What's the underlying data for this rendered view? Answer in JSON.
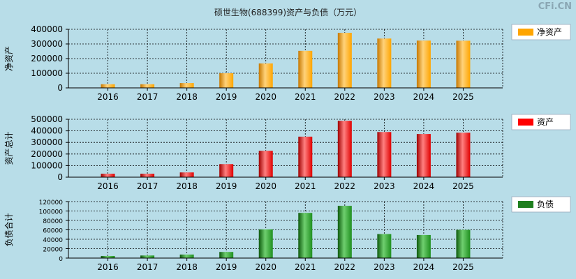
{
  "title": "硕世生物(688399)资产与负债（万元）",
  "watermark": "CFi.CN",
  "colors": {
    "background": "#b8dde8",
    "net_assets": "#ffa500",
    "assets": "#ff0000",
    "liabilities": "#1f7f1f"
  },
  "chart_data": [
    {
      "type": "bar",
      "ylabel": "净资产",
      "legend": "净资产",
      "legend_placement": "right",
      "grid": true,
      "categories": [
        "2016",
        "2017",
        "2018",
        "2019",
        "2020",
        "2021",
        "2022",
        "2023",
        "2024",
        "2025"
      ],
      "values": [
        25000,
        25000,
        33000,
        100000,
        167000,
        253000,
        376000,
        337000,
        323000,
        322000
      ],
      "ylim": [
        0,
        400000
      ],
      "yticks": [
        "0",
        "100000",
        "200000",
        "300000",
        "400000"
      ],
      "yticks_values": [
        0,
        100000,
        200000,
        300000,
        400000
      ]
    },
    {
      "type": "bar",
      "ylabel": "资产总计",
      "legend": "资产",
      "legend_placement": "right",
      "grid": true,
      "categories": [
        "2016",
        "2017",
        "2018",
        "2019",
        "2020",
        "2021",
        "2022",
        "2023",
        "2024",
        "2025"
      ],
      "values": [
        30000,
        30000,
        41000,
        113000,
        228000,
        350000,
        487000,
        390000,
        373000,
        384000
      ],
      "ylim": [
        0,
        500000
      ],
      "yticks": [
        "0",
        "100000",
        "200000",
        "300000",
        "400000",
        "500000"
      ],
      "yticks_values": [
        0,
        100000,
        200000,
        300000,
        400000,
        500000
      ]
    },
    {
      "type": "bar",
      "ylabel": "负债合计",
      "legend": "负债",
      "legend_placement": "right",
      "grid": true,
      "categories": [
        "2016",
        "2017",
        "2018",
        "2019",
        "2020",
        "2021",
        "2022",
        "2023",
        "2024",
        "2025"
      ],
      "values": [
        4500,
        5500,
        7500,
        13000,
        61000,
        96000,
        111000,
        51000,
        49000,
        60000
      ],
      "ylim": [
        0,
        120000
      ],
      "yticks": [
        "0",
        "20000",
        "40000",
        "60000",
        "80000",
        "100000",
        "120000"
      ],
      "yticks_values": [
        0,
        20000,
        40000,
        60000,
        80000,
        100000,
        120000
      ]
    }
  ]
}
